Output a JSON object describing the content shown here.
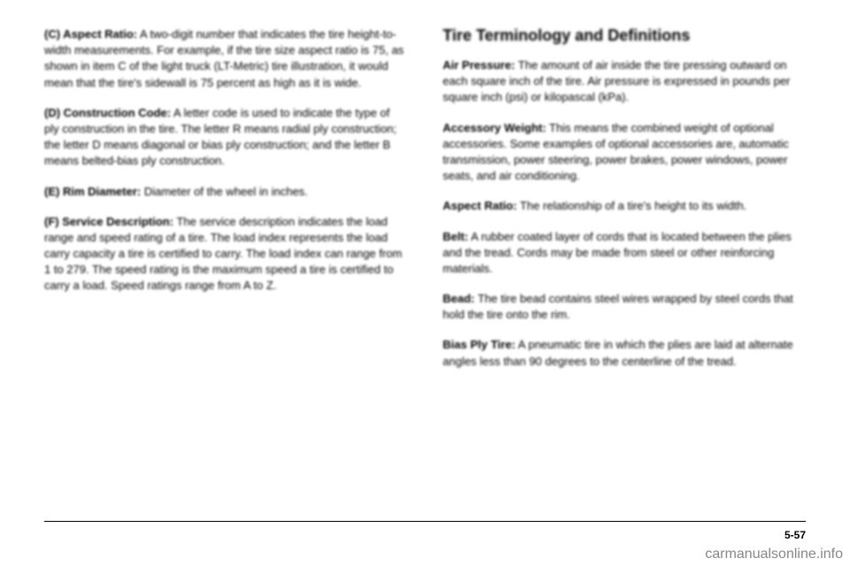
{
  "left_column": {
    "paragraphs": [
      {
        "label": "(C) Aspect Ratio:",
        "text": " A two-digit number that indicates the tire height-to-width measurements. For example, if the tire size aspect ratio is 75, as shown in item C of the light truck (LT-Metric) tire illustration, it would mean that the tire's sidewall is 75 percent as high as it is wide."
      },
      {
        "label": "(D) Construction Code:",
        "text": " A letter code is used to indicate the type of ply construction in the tire. The letter R means radial ply construction; the letter D means diagonal or bias ply construction; and the letter B means belted-bias ply construction."
      },
      {
        "label": "(E) Rim Diameter:",
        "text": " Diameter of the wheel in inches."
      },
      {
        "label": "(F) Service Description:",
        "text": " The service description indicates the load range and speed rating of a tire. The load index represents the load carry capacity a tire is certified to carry. The load index can range from 1 to 279. The speed rating is the maximum speed a tire is certified to carry a load. Speed ratings range from A to Z."
      }
    ]
  },
  "right_column": {
    "heading": "Tire Terminology and Definitions",
    "paragraphs": [
      {
        "label": "Air Pressure:",
        "text": " The amount of air inside the tire pressing outward on each square inch of the tire. Air pressure is expressed in pounds per square inch (psi) or kilopascal (kPa)."
      },
      {
        "label": "Accessory Weight:",
        "text": " This means the combined weight of optional accessories. Some examples of optional accessories are, automatic transmission, power steering, power brakes, power windows, power seats, and air conditioning."
      },
      {
        "label": "Aspect Ratio:",
        "text": " The relationship of a tire's height to its width."
      },
      {
        "label": "Belt:",
        "text": " A rubber coated layer of cords that is located between the plies and the tread. Cords may be made from steel or other reinforcing materials."
      },
      {
        "label": "Bead:",
        "text": " The tire bead contains steel wires wrapped by steel cords that hold the tire onto the rim."
      },
      {
        "label": "Bias Ply Tire:",
        "text": " A pneumatic tire in which the plies are laid at alternate angles less than 90 degrees to the centerline of the tread."
      }
    ]
  },
  "page_number": "5-57",
  "watermark": "carmanualsonline.info"
}
